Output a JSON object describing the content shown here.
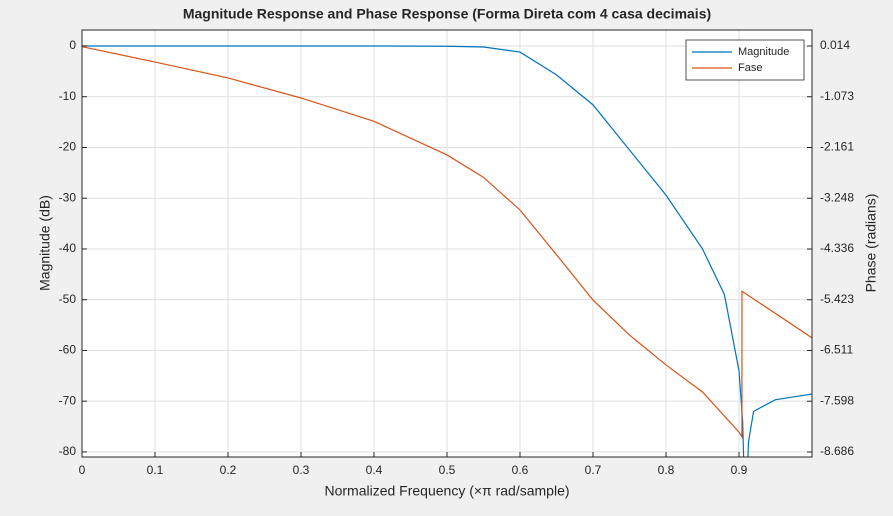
{
  "chart_data": {
    "type": "line",
    "title": "Magnitude Response and Phase Response (Forma Direta com 4 casa decimais)",
    "x_label": "Normalized Frequency (×π rad/sample)",
    "y_label": "Magnitude (dB)",
    "y2_label": "Phase (radians)",
    "xlim": [
      0,
      1
    ],
    "xticks": [
      0,
      0.1,
      0.2,
      0.3,
      0.4,
      0.5,
      0.6,
      0.7,
      0.8,
      0.9
    ],
    "ylim": [
      -81,
      3.15
    ],
    "yticks": [
      0,
      -10,
      -20,
      -30,
      -40,
      -50,
      -60,
      -70,
      -80
    ],
    "y2lim": [
      -8.793,
      0.357
    ],
    "y2ticks": [
      0.014,
      -1.073,
      -2.161,
      -3.248,
      -4.336,
      -5.423,
      -6.511,
      -7.598,
      -8.686
    ],
    "grid": true,
    "legend": "upper right",
    "series": [
      {
        "name": "Magnitude",
        "color": "#0072bd",
        "x": [
          0,
          0.1,
          0.2,
          0.3,
          0.4,
          0.5,
          0.55,
          0.6,
          0.65,
          0.7,
          0.75,
          0.8,
          0.85,
          0.88,
          0.9,
          0.905,
          0.909,
          0.913,
          0.92,
          0.95,
          1.0
        ],
        "values": [
          0,
          0,
          0,
          0,
          0,
          -0.05,
          -0.2,
          -1.2,
          -5.7,
          -11.6,
          -20.5,
          -29.4,
          -40,
          -49,
          -64,
          -74,
          -95,
          -78,
          -72,
          -69.7,
          -68.6
        ]
      },
      {
        "name": "Fase",
        "color": "#d95319",
        "axis": "y2",
        "x": [
          0,
          0.1,
          0.2,
          0.3,
          0.4,
          0.5,
          0.55,
          0.6,
          0.65,
          0.7,
          0.75,
          0.8,
          0.85,
          0.9,
          0.904,
          0.9041,
          1.0
        ],
        "values": [
          0,
          -0.33,
          -0.67,
          -1.1,
          -1.6,
          -2.32,
          -2.8,
          -3.5,
          -4.46,
          -5.43,
          -6.18,
          -6.82,
          -7.4,
          -8.26,
          -8.36,
          -5.24,
          -6.24
        ]
      }
    ]
  }
}
